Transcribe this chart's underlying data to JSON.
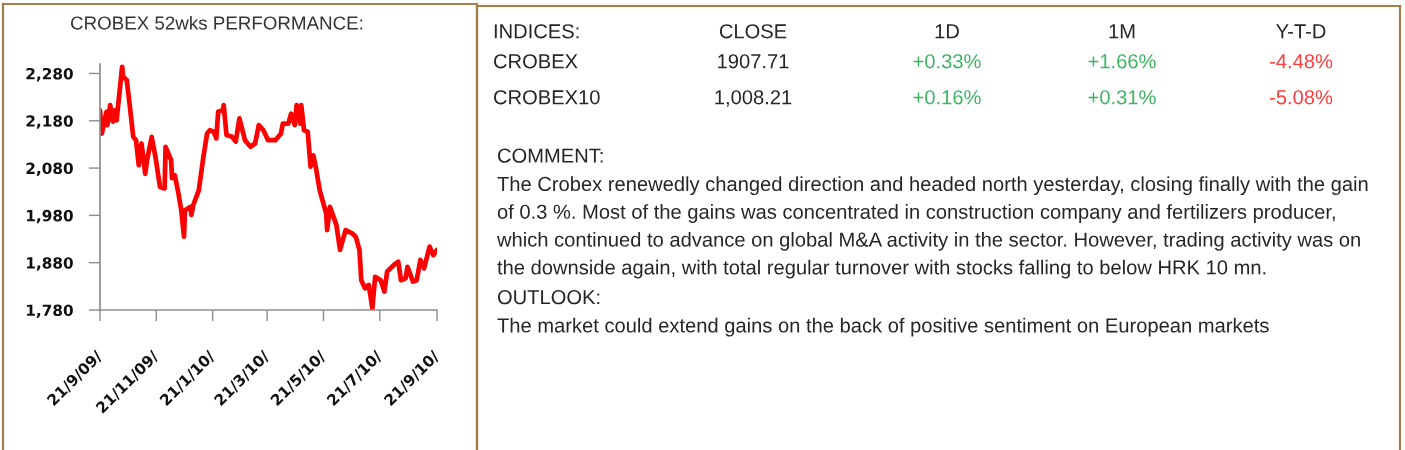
{
  "chart_data": [
    {
      "type": "line",
      "title": "CROBEX 52wks PERFORMANCE:",
      "color": "#ff0000",
      "line_style": "solid",
      "x": [
        "2009-09-21",
        "2009-09-23",
        "2009-09-28",
        "2009-09-29",
        "2009-10-02",
        "2009-10-05",
        "2009-10-07",
        "2009-10-09",
        "2009-10-15",
        "2009-10-16",
        "2009-10-20",
        "2009-10-23",
        "2009-10-27",
        "2009-10-30",
        "2009-11-02",
        "2009-11-05",
        "2009-11-09",
        "2009-11-11",
        "2009-11-16",
        "2009-11-20",
        "2009-11-25",
        "2009-11-30",
        "2009-12-01",
        "2009-12-07",
        "2009-12-08",
        "2009-12-11",
        "2009-12-15",
        "2009-12-18",
        "2009-12-21",
        "2009-12-22",
        "2009-12-28",
        "2009-12-29",
        "2009-12-31",
        "2010-01-06",
        "2010-01-11",
        "2010-01-15",
        "2010-01-18",
        "2010-01-22",
        "2010-01-25",
        "2010-01-27",
        "2010-02-01",
        "2010-02-02",
        "2010-02-05",
        "2010-02-11",
        "2010-02-15",
        "2010-02-19",
        "2010-02-25",
        "2010-03-03",
        "2010-03-08",
        "2010-03-12",
        "2010-03-17",
        "2010-03-22",
        "2010-03-30",
        "2010-04-05",
        "2010-04-07",
        "2010-04-13",
        "2010-04-16",
        "2010-04-20",
        "2010-04-22",
        "2010-04-26",
        "2010-04-27",
        "2010-04-30",
        "2010-05-04",
        "2010-05-07",
        "2010-05-10",
        "2010-05-13",
        "2010-05-17",
        "2010-05-24",
        "2010-05-25",
        "2010-05-28",
        "2010-06-04",
        "2010-06-08",
        "2010-06-14",
        "2010-06-21",
        "2010-06-25",
        "2010-06-29",
        "2010-07-01",
        "2010-07-05",
        "2010-07-09",
        "2010-07-13",
        "2010-07-16",
        "2010-07-22",
        "2010-07-26",
        "2010-07-29",
        "2010-08-05",
        "2010-08-10",
        "2010-08-13",
        "2010-08-18",
        "2010-08-20",
        "2010-08-26",
        "2010-08-30",
        "2010-09-03",
        "2010-09-07",
        "2010-09-13",
        "2010-09-17",
        "2010-09-21"
      ],
      "values": [
        2202,
        2153,
        2199,
        2171,
        2213,
        2178,
        2202,
        2181,
        2294,
        2273,
        2266,
        2216,
        2146,
        2139,
        2086,
        2132,
        2068,
        2097,
        2146,
        2104,
        2040,
        2037,
        2125,
        2097,
        2059,
        2065,
        2026,
        1991,
        1935,
        1991,
        1998,
        1981,
        2002,
        2033,
        2104,
        2153,
        2160,
        2157,
        2143,
        2199,
        2202,
        2213,
        2150,
        2146,
        2136,
        2185,
        2139,
        2125,
        2132,
        2171,
        2160,
        2139,
        2139,
        2153,
        2174,
        2174,
        2195,
        2171,
        2213,
        2174,
        2213,
        2160,
        2157,
        2083,
        2107,
        2079,
        2033,
        1984,
        1949,
        1998,
        1960,
        1907,
        1949,
        1942,
        1935,
        1907,
        1843,
        1826,
        1833,
        1784,
        1850,
        1843,
        1819,
        1861,
        1875,
        1882,
        1843,
        1847,
        1871,
        1840,
        1843,
        1886,
        1868,
        1914,
        1896,
        1907
      ],
      "xlim": [
        "2009-09-21",
        "2010-09-21"
      ],
      "xticks": [
        {
          "value": "2009-09-21",
          "label": "21/9/09/"
        },
        {
          "value": "2009-11-21",
          "label": "21/11/09/"
        },
        {
          "value": "2010-01-21",
          "label": "21/1/10/"
        },
        {
          "value": "2010-03-21",
          "label": "21/3/10/"
        },
        {
          "value": "2010-05-21",
          "label": "21/5/10/"
        },
        {
          "value": "2010-07-21",
          "label": "21/7/10/"
        },
        {
          "value": "2010-09-21",
          "label": "21/9/10/"
        }
      ],
      "ylim": [
        1780,
        2300
      ],
      "yticks": [
        {
          "value": 1780,
          "label": "1,780"
        },
        {
          "value": 1880,
          "label": "1,880"
        },
        {
          "value": 1980,
          "label": "1,980"
        },
        {
          "value": 2080,
          "label": "2,080"
        },
        {
          "value": 2180,
          "label": "2,180"
        },
        {
          "value": 2280,
          "label": "2,280"
        }
      ]
    },
    {
      "type": "other",
      "legend_title": "INDICES:",
      "categories": [
        "CLOSE",
        "1D",
        "1M",
        "Y-T-D"
      ],
      "series": [
        {
          "name": "CROBEX",
          "values": [
            1907.71,
            0.33,
            1.66,
            -4.48
          ],
          "value_labels": [
            "1907.71",
            "+0.33%",
            "+1.66%",
            "-4.48%"
          ],
          "colors": [
            "#262626",
            "#3cb562",
            "#3cb562",
            "#ff3b3b"
          ]
        },
        {
          "name": "CROBEX10",
          "values": [
            1008.21,
            0.16,
            0.31,
            -5.08
          ],
          "value_labels": [
            "1,008.21",
            "+0.16%",
            "+0.31%",
            "-5.08%"
          ],
          "colors": [
            "#262626",
            "#3cb562",
            "#3cb562",
            "#ff3b3b"
          ]
        }
      ],
      "annotations": [
        "COMMENT:",
        "The Crobex renewedly changed direction and headed north yesterday, closing finally with the gain of 0.3 %. Most of the gains was concentrated in construction company and fertilizers producer, which continued to advance on global M&A activity in the sector. However, trading activity was on the downside again, with total regular turnover with stocks falling to below HRK 10 mn.",
        "OUTLOOK:",
        "The market could extend gains on the back of positive sentiment on European markets"
      ]
    }
  ]
}
